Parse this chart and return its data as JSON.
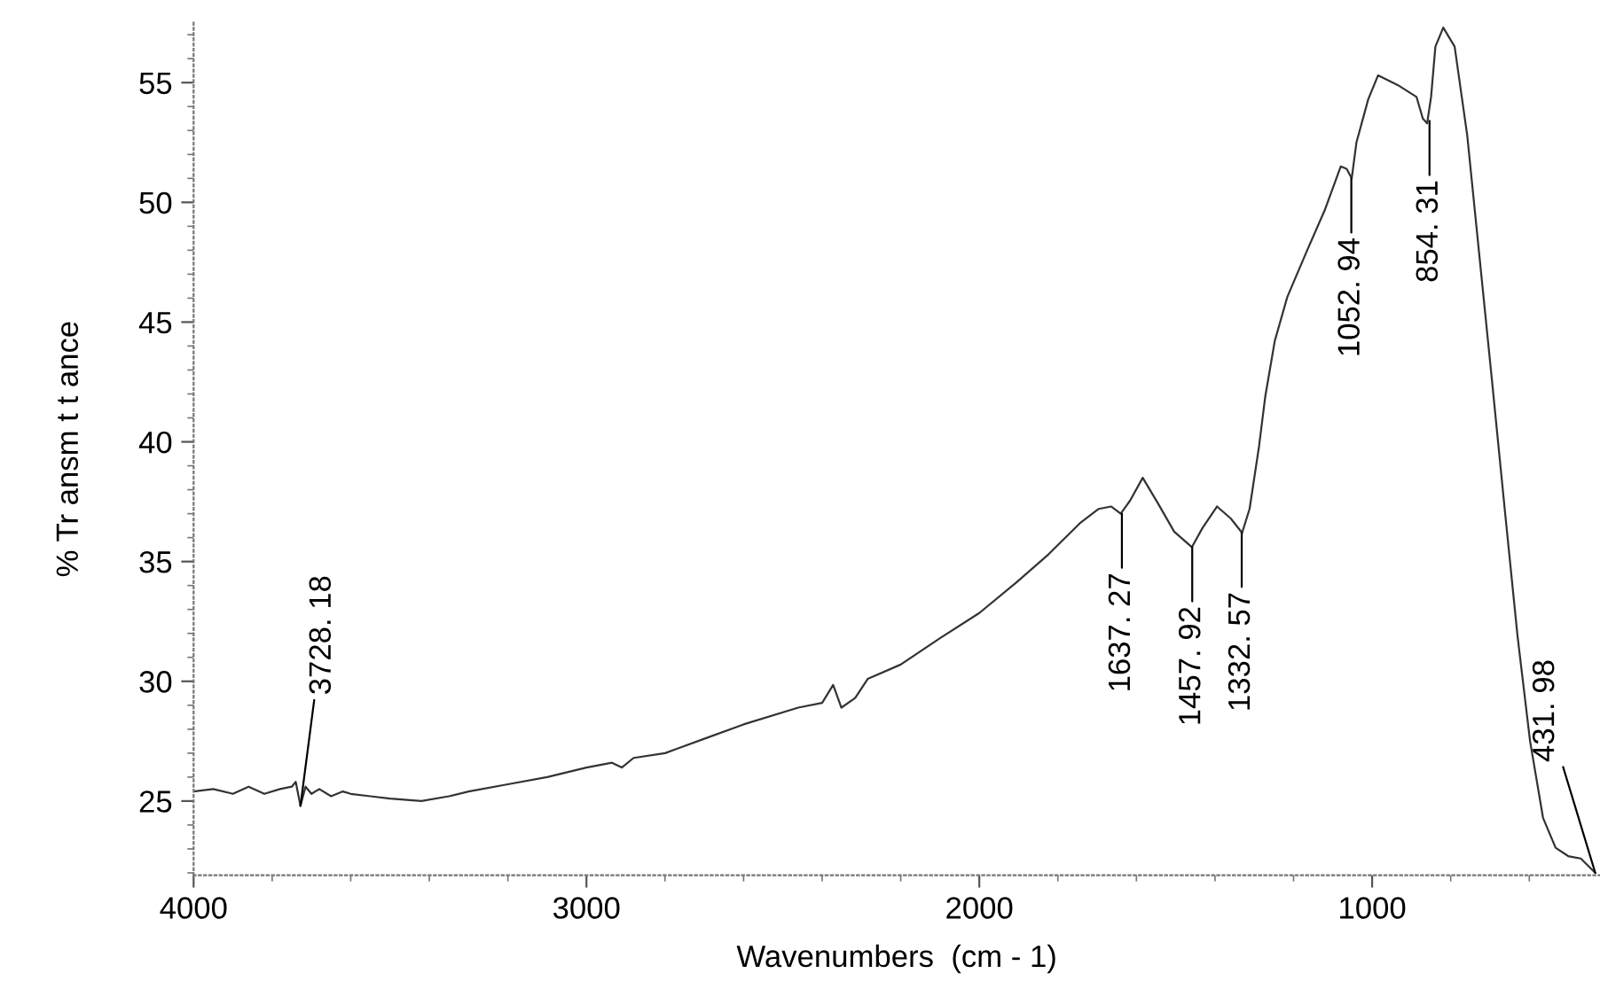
{
  "chart_data": {
    "type": "line",
    "xlabel": "Wavenumbers  (cm - 1)",
    "ylabel": "% Tr ansm t t ance",
    "xlim": [
      4000,
      420
    ],
    "ylim": [
      21.9,
      57.5
    ],
    "xticks": [
      4000,
      {
        "value": 3800,
        "label": null
      },
      {
        "value": 3600,
        "label": null
      },
      {
        "value": 3400,
        "label": null
      },
      {
        "value": 3200,
        "label": null
      },
      3000,
      {
        "value": 2800,
        "label": null
      },
      {
        "value": 2600,
        "label": null
      },
      {
        "value": 2400,
        "label": null
      },
      {
        "value": 2200,
        "label": null
      },
      2000,
      {
        "value": 1800,
        "label": null
      },
      {
        "value": 1600,
        "label": null
      },
      {
        "value": 1400,
        "label": null
      },
      {
        "value": 1200,
        "label": null
      },
      1000,
      {
        "value": 800,
        "label": null
      },
      {
        "value": 600,
        "label": null
      }
    ],
    "yticks": [
      {
        "value": 22,
        "label": null
      },
      {
        "value": 23,
        "label": null
      },
      {
        "value": 24,
        "label": null
      },
      25,
      {
        "value": 26,
        "label": null
      },
      {
        "value": 27,
        "label": null
      },
      {
        "value": 28,
        "label": null
      },
      {
        "value": 29,
        "label": null
      },
      30,
      {
        "value": 31,
        "label": null
      },
      {
        "value": 32,
        "label": null
      },
      {
        "value": 33,
        "label": null
      },
      {
        "value": 34,
        "label": null
      },
      35,
      {
        "value": 36,
        "label": null
      },
      {
        "value": 37,
        "label": null
      },
      {
        "value": 38,
        "label": null
      },
      {
        "value": 39,
        "label": null
      },
      40,
      {
        "value": 41,
        "label": null
      },
      {
        "value": 42,
        "label": null
      },
      {
        "value": 43,
        "label": null
      },
      {
        "value": 44,
        "label": null
      },
      45,
      {
        "value": 46,
        "label": null
      },
      {
        "value": 47,
        "label": null
      },
      {
        "value": 48,
        "label": null
      },
      {
        "value": 49,
        "label": null
      },
      50,
      {
        "value": 51,
        "label": null
      },
      {
        "value": 52,
        "label": null
      },
      {
        "value": 53,
        "label": null
      },
      {
        "value": 54,
        "label": null
      },
      55,
      {
        "value": 56,
        "label": null
      },
      {
        "value": 57,
        "label": null
      }
    ],
    "grid": false,
    "series": [
      {
        "color": "#333333",
        "x": [
          4000,
          3950,
          3900,
          3860,
          3820,
          3780,
          3750,
          3740,
          3728,
          3715,
          3700,
          3680,
          3650,
          3620,
          3600,
          3550,
          3500,
          3420,
          3350,
          3300,
          3200,
          3100,
          3000,
          2935,
          2910,
          2880,
          2800,
          2700,
          2600,
          2461,
          2400,
          2372,
          2351,
          2316,
          2284,
          2200,
          2100,
          2000,
          1904,
          1824,
          1744,
          1696,
          1664,
          1640,
          1616,
          1584,
          1544,
          1504,
          1459,
          1432,
          1395,
          1360,
          1331,
          1312,
          1288,
          1272,
          1248,
          1216,
          1168,
          1120,
          1080,
          1065,
          1052,
          1040,
          1010,
          985,
          935,
          887,
          871,
          860,
          850,
          839,
          819,
          790,
          758,
          726,
          694,
          662,
          630,
          598,
          565,
          533,
          501,
          469,
          432
        ],
        "values": [
          25.4,
          25.5,
          25.3,
          25.6,
          25.3,
          25.5,
          25.6,
          25.8,
          24.8,
          25.6,
          25.3,
          25.5,
          25.2,
          25.4,
          25.3,
          25.2,
          25.1,
          25.0,
          25.2,
          25.4,
          25.7,
          26.0,
          26.4,
          26.6,
          26.4,
          26.8,
          27.0,
          27.6,
          28.2,
          28.9,
          29.1,
          29.85,
          28.9,
          29.3,
          30.1,
          30.7,
          31.8,
          32.85,
          34.15,
          35.3,
          36.6,
          37.2,
          37.3,
          37.0,
          37.55,
          38.5,
          37.4,
          36.25,
          35.6,
          36.4,
          37.3,
          36.8,
          36.2,
          37.2,
          39.8,
          41.9,
          44.2,
          46.05,
          47.9,
          49.7,
          51.5,
          51.4,
          51.0,
          52.5,
          54.3,
          55.3,
          54.9,
          54.4,
          53.5,
          53.3,
          54.4,
          56.5,
          57.3,
          56.5,
          52.8,
          47.6,
          42.4,
          37.1,
          31.9,
          27.5,
          24.3,
          23.05,
          22.7,
          22.6,
          22.0
        ]
      }
    ],
    "annotations": [
      {
        "text": "3728. 18",
        "x": 3728,
        "y": 24.8
      },
      {
        "text": "1637. 27",
        "x": 1637,
        "y": 37.0
      },
      {
        "text": "1457. 92",
        "x": 1458,
        "y": 35.6
      },
      {
        "text": "1332. 57",
        "x": 1332,
        "y": 36.2
      },
      {
        "text": "1052. 94",
        "x": 1053,
        "y": 51.0
      },
      {
        "text": "854. 31",
        "x": 854,
        "y": 53.4
      },
      {
        "text": "431. 98",
        "x": 432,
        "y": 22.0
      }
    ]
  }
}
